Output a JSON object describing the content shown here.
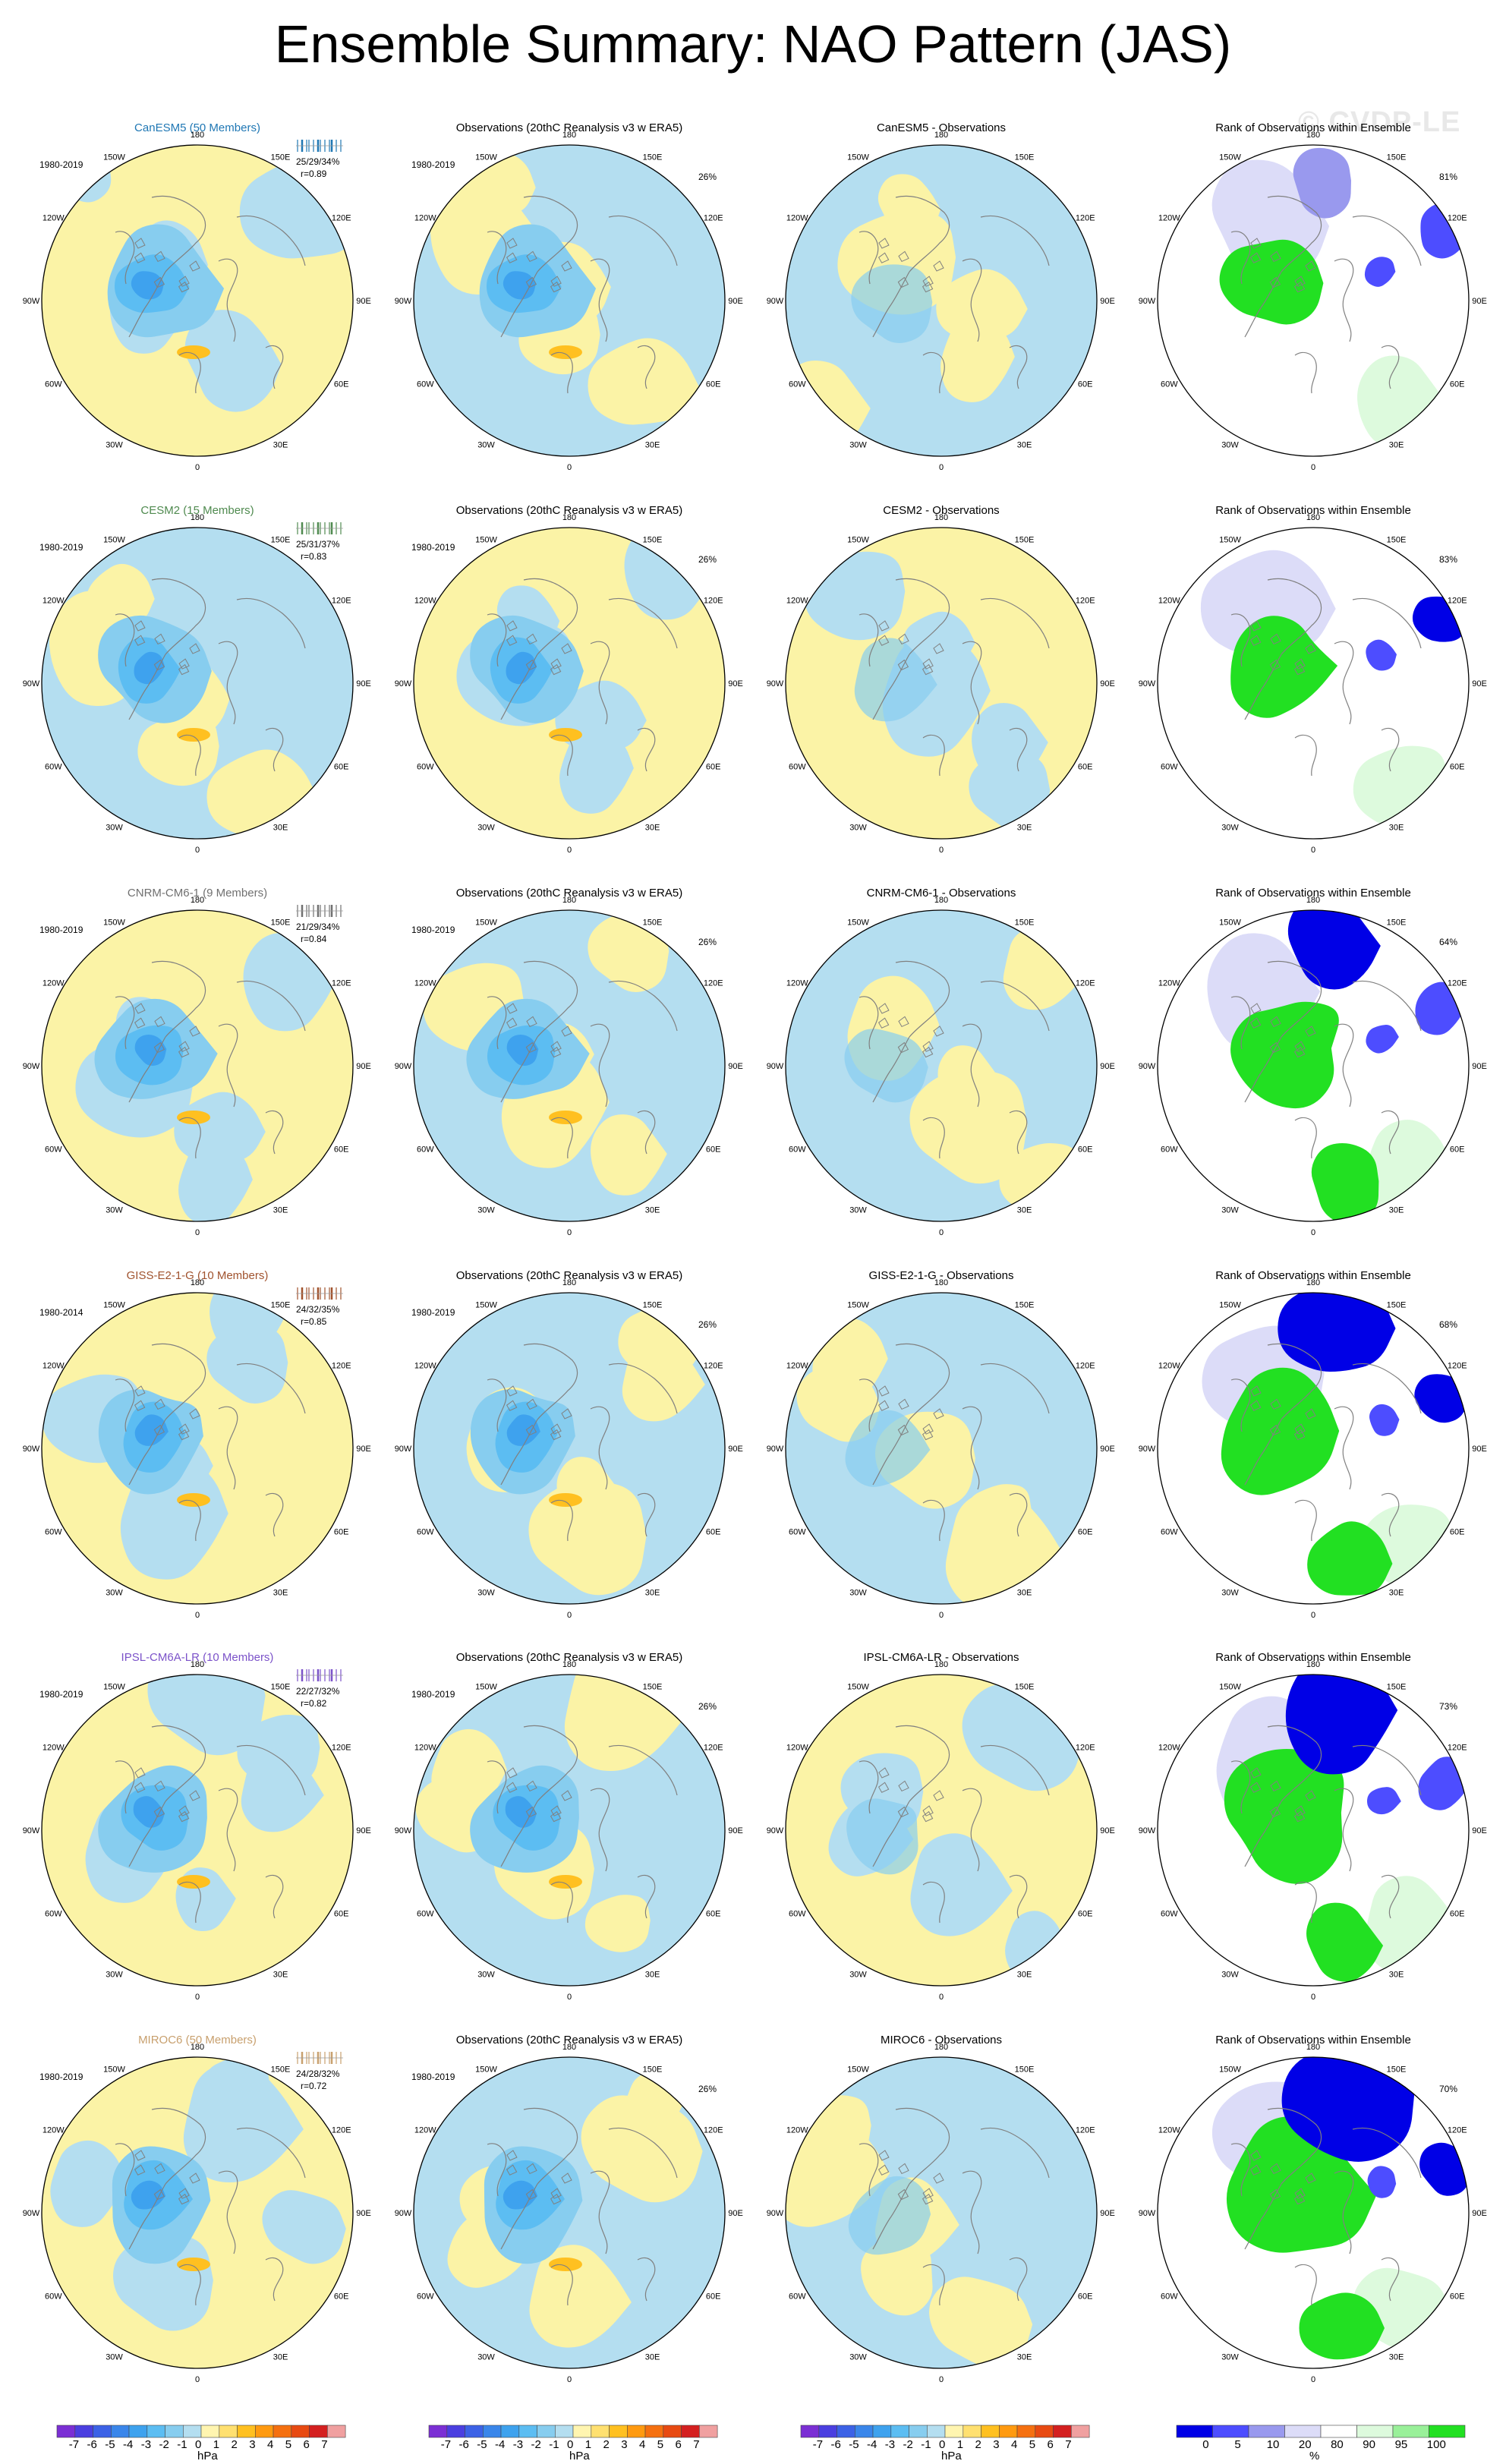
{
  "page": {
    "title": "Ensemble Summary: NAO Pattern (JAS)",
    "watermark": "© CVDP-LE"
  },
  "longitude_labels": [
    "180",
    "150E",
    "120E",
    "90E",
    "60E",
    "30E",
    "0",
    "30W",
    "60W",
    "90W",
    "120W",
    "150W"
  ],
  "rows": [
    {
      "model": "CanESM5",
      "model_title": "CanESM5 (50 Members)",
      "title_color": "#1f77b4",
      "model_years": "1980-2019",
      "stats": "25/29/34%",
      "correlation": "r=0.89",
      "obs_title": "Observations (20thC Reanalysis v3 w ERA5)",
      "obs_years": "1980-2019",
      "obs_pct": "26%",
      "diff_title": "CanESM5 - Observations",
      "rank_title": "Rank of Observations within Ensemble",
      "rank_pct": "81%"
    },
    {
      "model": "CESM2",
      "model_title": "CESM2 (15 Members)",
      "title_color": "#4f8a4f",
      "model_years": "1980-2019",
      "stats": "25/31/37%",
      "correlation": "r=0.83",
      "obs_title": "Observations (20thC Reanalysis v3 w ERA5)",
      "obs_years": "1980-2019",
      "obs_pct": "26%",
      "diff_title": "CESM2 - Observations",
      "rank_title": "Rank of Observations within Ensemble",
      "rank_pct": "83%"
    },
    {
      "model": "CNRM-CM6-1",
      "model_title": "CNRM-CM6-1 (9 Members)",
      "title_color": "#707070",
      "model_years": "1980-2019",
      "stats": "21/29/34%",
      "correlation": "r=0.84",
      "obs_title": "Observations (20thC Reanalysis v3 w ERA5)",
      "obs_years": "1980-2019",
      "obs_pct": "26%",
      "diff_title": "CNRM-CM6-1 - Observations",
      "rank_title": "Rank of Observations within Ensemble",
      "rank_pct": "64%"
    },
    {
      "model": "GISS-E2-1-G",
      "model_title": "GISS-E2-1-G (10 Members)",
      "title_color": "#a0522d",
      "model_years": "1980-2014",
      "stats": "24/32/35%",
      "correlation": "r=0.85",
      "obs_title": "Observations (20thC Reanalysis v3 w ERA5)",
      "obs_years": "1980-2019",
      "obs_pct": "26%",
      "diff_title": "GISS-E2-1-G - Observations",
      "rank_title": "Rank of Observations within Ensemble",
      "rank_pct": "68%"
    },
    {
      "model": "IPSL-CM6A-LR",
      "model_title": "IPSL-CM6A-LR (10 Members)",
      "title_color": "#7b52c9",
      "model_years": "1980-2019",
      "stats": "22/27/32%",
      "correlation": "r=0.82",
      "obs_title": "Observations (20thC Reanalysis v3 w ERA5)",
      "obs_years": "1980-2019",
      "obs_pct": "26%",
      "diff_title": "IPSL-CM6A-LR - Observations",
      "rank_title": "Rank of Observations within Ensemble",
      "rank_pct": "73%"
    },
    {
      "model": "MIROC6",
      "model_title": "MIROC6 (50 Members)",
      "title_color": "#c8a06e",
      "model_years": "1980-2019",
      "stats": "24/28/32%",
      "correlation": "r=0.72",
      "obs_title": "Observations (20thC Reanalysis v3 w ERA5)",
      "obs_years": "1980-2019",
      "obs_pct": "26%",
      "diff_title": "MIROC6 - Observations",
      "rank_title": "Rank of Observations within Ensemble",
      "rank_pct": "70%"
    }
  ],
  "colorbars": [
    {
      "unit": "hPa",
      "tick_labels": [
        "-7",
        "-6",
        "-5",
        "-4",
        "-3",
        "-2",
        "-1",
        "0",
        "1",
        "2",
        "3",
        "4",
        "5",
        "6",
        "7"
      ],
      "colors": [
        "#7b2fd4",
        "#4b3fe0",
        "#3c62e6",
        "#3a86ea",
        "#3ea2ee",
        "#5cbdf2",
        "#87cdef",
        "#b4def0",
        "#fff5b0",
        "#ffe070",
        "#ffc020",
        "#ff9a10",
        "#f57010",
        "#e84a12",
        "#d42020",
        "#f0a0a0"
      ]
    },
    {
      "unit": "hPa",
      "tick_labels": [
        "-7",
        "-6",
        "-5",
        "-4",
        "-3",
        "-2",
        "-1",
        "0",
        "1",
        "2",
        "3",
        "4",
        "5",
        "6",
        "7"
      ],
      "colors": [
        "#7b2fd4",
        "#4b3fe0",
        "#3c62e6",
        "#3a86ea",
        "#3ea2ee",
        "#5cbdf2",
        "#87cdef",
        "#b4def0",
        "#fff5b0",
        "#ffe070",
        "#ffc020",
        "#ff9a10",
        "#f57010",
        "#e84a12",
        "#d42020",
        "#f0a0a0"
      ]
    },
    {
      "unit": "hPa",
      "tick_labels": [
        "-7",
        "-6",
        "-5",
        "-4",
        "-3",
        "-2",
        "-1",
        "0",
        "1",
        "2",
        "3",
        "4",
        "5",
        "6",
        "7"
      ],
      "colors": [
        "#7b2fd4",
        "#4b3fe0",
        "#3c62e6",
        "#3a86ea",
        "#3ea2ee",
        "#5cbdf2",
        "#87cdef",
        "#b4def0",
        "#fff5b0",
        "#ffe070",
        "#ffc020",
        "#ff9a10",
        "#f57010",
        "#e84a12",
        "#d42020",
        "#f0a0a0"
      ]
    },
    {
      "unit": "%",
      "tick_labels": [
        "0",
        "5",
        "10",
        "20",
        "80",
        "90",
        "95",
        "100"
      ],
      "colors": [
        "#0000e6",
        "#4d4dff",
        "#9999ee",
        "#dcdcf8",
        "#ffffff",
        "#ddfadd",
        "#99f099",
        "#22e022"
      ]
    }
  ],
  "chart_data": {
    "type": "heatmap",
    "title": "Ensemble Summary: NAO Pattern (JAS)",
    "variable": "NAO Pattern (JAS)",
    "columns": [
      "model ensemble pattern",
      "observations",
      "model - observations",
      "rank of observations within ensemble"
    ],
    "models": [
      "CanESM5",
      "CESM2",
      "CNRM-CM6-1",
      "GISS-E2-1-G",
      "IPSL-CM6A-LR",
      "MIROC6"
    ],
    "members": [
      50,
      15,
      9,
      10,
      10,
      50
    ],
    "model_years": [
      "1980-2019",
      "1980-2019",
      "1980-2019",
      "1980-2014",
      "1980-2019",
      "1980-2019"
    ],
    "obs_years": "1980-2019",
    "variance_explained_pct": [
      {
        "low": 25,
        "mean": 29,
        "high": 34
      },
      {
        "low": 25,
        "mean": 31,
        "high": 37
      },
      {
        "low": 21,
        "mean": 29,
        "high": 34
      },
      {
        "low": 24,
        "mean": 32,
        "high": 35
      },
      {
        "low": 22,
        "mean": 27,
        "high": 32
      },
      {
        "low": 24,
        "mean": 28,
        "high": 32
      }
    ],
    "pattern_correlation": [
      0.89,
      0.83,
      0.84,
      0.85,
      0.82,
      0.72
    ],
    "obs_variance_explained_pct": 26,
    "rank_pct": [
      81,
      83,
      64,
      68,
      73,
      70
    ],
    "contour_levels_hPa": [
      -7,
      -6,
      -5,
      -4,
      -3,
      -2,
      -1,
      0,
      1,
      2,
      3,
      4,
      5,
      6,
      7
    ],
    "rank_levels_pct": [
      0,
      5,
      10,
      20,
      80,
      90,
      95,
      100
    ],
    "projection": "polar stereographic, Northern Hemisphere"
  }
}
